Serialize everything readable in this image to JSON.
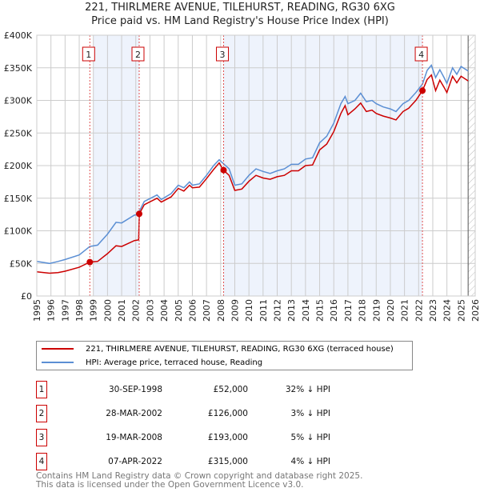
{
  "chart_data": {
    "type": "line",
    "title": "221, THIRLMERE AVENUE, TILEHURST, READING, RG30 6XG",
    "subtitle": "Price paid vs. HM Land Registry's House Price Index (HPI)",
    "xlim": [
      1995,
      2026
    ],
    "ylim": [
      0,
      400000
    ],
    "x_ticks": [
      "1995",
      "1996",
      "1997",
      "1998",
      "1999",
      "2000",
      "2001",
      "2002",
      "2003",
      "2004",
      "2005",
      "2006",
      "2007",
      "2008",
      "2009",
      "2010",
      "2011",
      "2012",
      "2013",
      "2014",
      "2015",
      "2016",
      "2017",
      "2018",
      "2019",
      "2020",
      "2021",
      "2022",
      "2023",
      "2024",
      "2025",
      "2026"
    ],
    "y_ticks": [
      {
        "v": 0,
        "label": "£0"
      },
      {
        "v": 50000,
        "label": "£50K"
      },
      {
        "v": 100000,
        "label": "£100K"
      },
      {
        "v": 150000,
        "label": "£150K"
      },
      {
        "v": 200000,
        "label": "£200K"
      },
      {
        "v": 250000,
        "label": "£250K"
      },
      {
        "v": 300000,
        "label": "£300K"
      },
      {
        "v": 350000,
        "label": "£350K"
      },
      {
        "v": 400000,
        "label": "£400K"
      }
    ],
    "grid": true,
    "x": [
      1995,
      1995.9,
      1996.5,
      1997,
      1998,
      1998.75,
      1999.3,
      2000,
      2000.6,
      2001,
      2001.9,
      2002.2,
      2002.25,
      2002.6,
      2003.5,
      2003.8,
      2004.5,
      2005,
      2005.4,
      2005.8,
      2006,
      2006.5,
      2007,
      2007.5,
      2007.9,
      2008.2,
      2008.6,
      2009,
      2009.5,
      2010,
      2010.5,
      2011,
      2011.5,
      2012,
      2012.5,
      2013,
      2013.5,
      2014,
      2014.5,
      2015,
      2015.5,
      2016,
      2016.5,
      2016.8,
      2017,
      2017.5,
      2017.9,
      2018.3,
      2018.7,
      2019,
      2019.5,
      2020,
      2020.4,
      2020.9,
      2021.3,
      2021.8,
      2022.27,
      2022.6,
      2022.9,
      2023.2,
      2023.5,
      2023.8,
      2024,
      2024.4,
      2024.7,
      2025,
      2025.5
    ],
    "series": [
      {
        "name": "221, THIRLMERE AVENUE, TILEHURST, READING, RG30 6XG (terraced house)",
        "color": "#cc0000",
        "values": [
          37,
          35,
          36,
          38,
          44,
          52,
          53,
          65,
          77,
          76,
          85,
          86,
          126,
          140,
          150,
          144,
          152,
          165,
          161,
          170,
          166,
          167,
          180,
          194,
          204,
          193,
          185,
          162,
          164,
          176,
          185,
          181,
          179,
          183,
          185,
          192,
          192,
          200,
          201,
          224,
          233,
          252,
          280,
          292,
          278,
          287,
          296,
          283,
          285,
          280,
          276,
          273,
          270,
          283,
          288,
          300,
          315,
          332,
          339,
          315,
          331,
          320,
          312,
          337,
          327,
          337,
          330
        ]
      },
      {
        "name": "HPI: Average price, terraced house, Reading",
        "color": "#5b8fd4",
        "values": [
          53,
          50,
          53,
          56,
          63,
          76,
          78,
          95,
          113,
          112,
          124,
          125,
          130,
          145,
          155,
          148,
          157,
          170,
          166,
          175,
          170,
          172,
          185,
          200,
          209,
          203,
          195,
          170,
          172,
          185,
          195,
          191,
          188,
          192,
          195,
          202,
          202,
          210,
          212,
          235,
          245,
          265,
          295,
          306,
          295,
          300,
          311,
          298,
          300,
          295,
          290,
          287,
          283,
          295,
          300,
          312,
          325,
          346,
          354,
          335,
          347,
          335,
          326,
          350,
          340,
          352,
          345
        ]
      }
    ],
    "value_unit": "thousands GBP",
    "sales": [
      {
        "n": "1",
        "x": 1998.75,
        "price": 52000
      },
      {
        "n": "2",
        "x": 2002.24,
        "price": 126000
      },
      {
        "n": "3",
        "x": 2008.21,
        "price": 193000
      },
      {
        "n": "4",
        "x": 2022.27,
        "price": 315000
      }
    ],
    "shaded_ranges": [
      [
        1999.0,
        2002.24
      ],
      [
        2008.21,
        2022.27
      ]
    ],
    "forecast_from": 2025.5
  },
  "legend": {
    "property": "221, THIRLMERE AVENUE, TILEHURST, READING, RG30 6XG (terraced house)",
    "hpi": "HPI: Average price, terraced house, Reading"
  },
  "transactions": [
    {
      "n": "1",
      "date": "30-SEP-1998",
      "price": "£52,000",
      "pct": "32% ↓ HPI"
    },
    {
      "n": "2",
      "date": "28-MAR-2002",
      "price": "£126,000",
      "pct": "3% ↓ HPI"
    },
    {
      "n": "3",
      "date": "19-MAR-2008",
      "price": "£193,000",
      "pct": "5% ↓ HPI"
    },
    {
      "n": "4",
      "date": "07-APR-2022",
      "price": "£315,000",
      "pct": "4% ↓ HPI"
    }
  ],
  "footer": {
    "line1": "Contains HM Land Registry data © Crown copyright and database right 2025.",
    "line2": "This data is licensed under the Open Government Licence v3.0."
  }
}
